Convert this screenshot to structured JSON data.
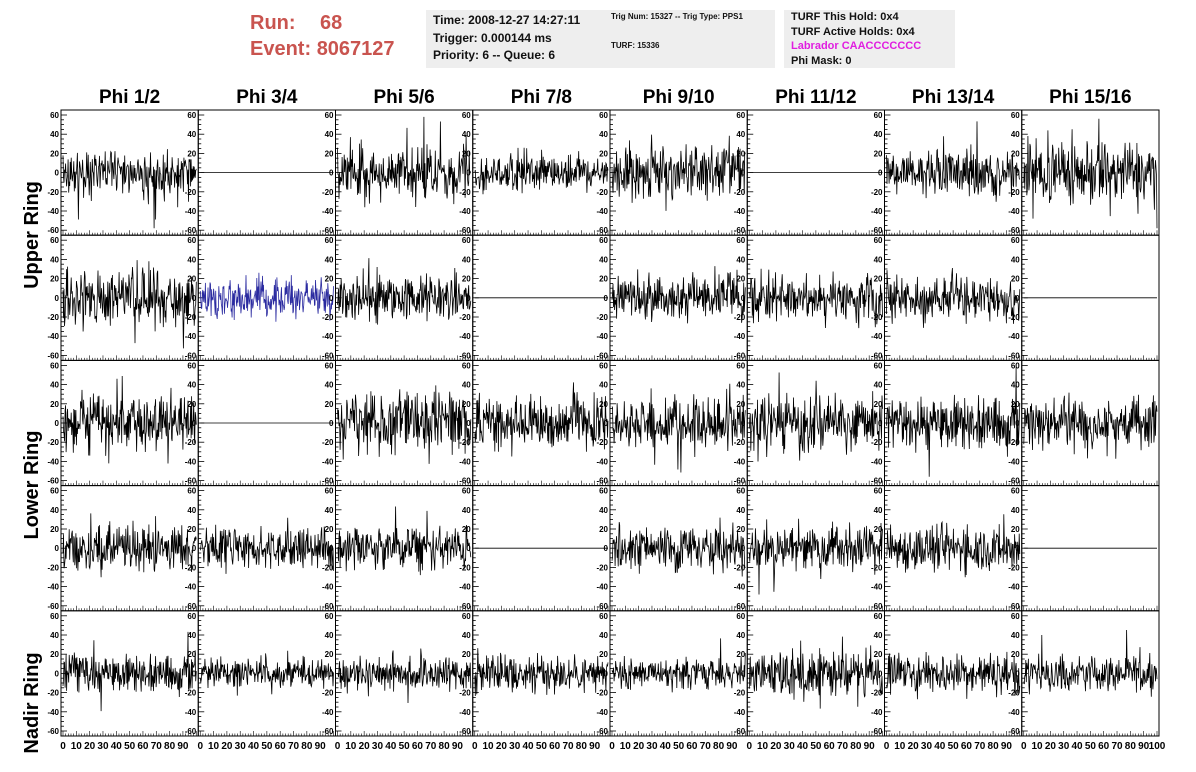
{
  "header": {
    "run_label": "Run:",
    "run_value": "68",
    "event_label": "Event:",
    "event_value": "8067127",
    "time_line": "Time: 2008-12-27 14:27:11",
    "trigger_line": "Trigger: 0.000144 ms",
    "priority_line": "Priority: 6 -- Queue: 6",
    "trig_line": "Trig Num: 15327 -- Trig Type: PPS1",
    "turf_line": "TURF: 15336",
    "turf_hold_line": "TURF This Hold: 0x4",
    "turf_active_line": "TURF Active Holds: 0x4",
    "labrador_line": "Labrador CAACCCCCCC",
    "phi_mask_line": "Phi Mask: 0"
  },
  "colors": {
    "header_red": "#c9544f",
    "labrador_magenta": "#e01ee0",
    "trace_default": "#000000",
    "trace_highlight": "#2a2aa0",
    "info_box_bg": "#eeeeee"
  },
  "chart_data": {
    "type": "line",
    "columns": [
      "Phi 1/2",
      "Phi 3/4",
      "Phi 5/6",
      "Phi 7/8",
      "Phi 9/10",
      "Phi 11/12",
      "Phi 13/14",
      "Phi 15/16"
    ],
    "rows": [
      "Upper Ring",
      "Lower Ring",
      "Nadir Ring"
    ],
    "row_label_order": [
      "Upper Ring",
      "Lower Ring",
      "Nadir Ring"
    ],
    "xlim": [
      0,
      100
    ],
    "ylim": [
      -60,
      60
    ],
    "x_tick_labels": [
      "0",
      "10",
      "20",
      "30",
      "40",
      "50",
      "60",
      "70",
      "80",
      "90",
      "100"
    ],
    "y_tick_labels": [
      "60",
      "40",
      "20",
      "0",
      "-20",
      "-40",
      "-60"
    ],
    "n_samples": 260,
    "panels": [
      {
        "row": 0,
        "col": 0,
        "state": "active",
        "amplitude": 18,
        "seed": 11
      },
      {
        "row": 0,
        "col": 1,
        "state": "flat",
        "amplitude": 0,
        "seed": 12
      },
      {
        "row": 0,
        "col": 2,
        "state": "active",
        "amplitude": 20,
        "seed": 13
      },
      {
        "row": 0,
        "col": 3,
        "state": "active",
        "amplitude": 14,
        "seed": 14
      },
      {
        "row": 0,
        "col": 4,
        "state": "active",
        "amplitude": 20,
        "seed": 15
      },
      {
        "row": 0,
        "col": 5,
        "state": "flat",
        "amplitude": 0,
        "seed": 16
      },
      {
        "row": 0,
        "col": 6,
        "state": "active",
        "amplitude": 16,
        "seed": 17
      },
      {
        "row": 0,
        "col": 7,
        "state": "active",
        "amplitude": 24,
        "seed": 18
      },
      {
        "row": 1,
        "col": 0,
        "state": "active",
        "amplitude": 22,
        "seed": 21
      },
      {
        "row": 1,
        "col": 1,
        "state": "highlight",
        "amplitude": 14,
        "seed": 22
      },
      {
        "row": 1,
        "col": 2,
        "state": "active",
        "amplitude": 17,
        "seed": 23
      },
      {
        "row": 1,
        "col": 3,
        "state": "flat",
        "amplitude": 0,
        "seed": 24
      },
      {
        "row": 1,
        "col": 4,
        "state": "active",
        "amplitude": 16,
        "seed": 25
      },
      {
        "row": 1,
        "col": 5,
        "state": "active",
        "amplitude": 18,
        "seed": 26
      },
      {
        "row": 1,
        "col": 6,
        "state": "active",
        "amplitude": 16,
        "seed": 27
      },
      {
        "row": 1,
        "col": 7,
        "state": "flat",
        "amplitude": 0,
        "seed": 28
      },
      {
        "row": 2,
        "col": 0,
        "state": "active",
        "amplitude": 20,
        "seed": 31
      },
      {
        "row": 2,
        "col": 1,
        "state": "flat",
        "amplitude": 0,
        "seed": 32
      },
      {
        "row": 2,
        "col": 2,
        "state": "active",
        "amplitude": 22,
        "seed": 33
      },
      {
        "row": 2,
        "col": 3,
        "state": "active",
        "amplitude": 18,
        "seed": 34
      },
      {
        "row": 2,
        "col": 4,
        "state": "active",
        "amplitude": 18,
        "seed": 35
      },
      {
        "row": 2,
        "col": 5,
        "state": "active",
        "amplitude": 20,
        "seed": 36
      },
      {
        "row": 2,
        "col": 6,
        "state": "active",
        "amplitude": 20,
        "seed": 37
      },
      {
        "row": 2,
        "col": 7,
        "state": "active",
        "amplitude": 18,
        "seed": 38
      },
      {
        "row": 3,
        "col": 0,
        "state": "active",
        "amplitude": 17,
        "seed": 41
      },
      {
        "row": 3,
        "col": 1,
        "state": "active",
        "amplitude": 15,
        "seed": 42
      },
      {
        "row": 3,
        "col": 2,
        "state": "active",
        "amplitude": 16,
        "seed": 43
      },
      {
        "row": 3,
        "col": 3,
        "state": "flat",
        "amplitude": 0,
        "seed": 44
      },
      {
        "row": 3,
        "col": 4,
        "state": "active",
        "amplitude": 17,
        "seed": 45
      },
      {
        "row": 3,
        "col": 5,
        "state": "active",
        "amplitude": 16,
        "seed": 46
      },
      {
        "row": 3,
        "col": 6,
        "state": "active",
        "amplitude": 17,
        "seed": 47
      },
      {
        "row": 3,
        "col": 7,
        "state": "flat",
        "amplitude": 0,
        "seed": 48
      },
      {
        "row": 4,
        "col": 0,
        "state": "active",
        "amplitude": 14,
        "seed": 51
      },
      {
        "row": 4,
        "col": 1,
        "state": "active",
        "amplitude": 11,
        "seed": 52
      },
      {
        "row": 4,
        "col": 2,
        "state": "active",
        "amplitude": 13,
        "seed": 53
      },
      {
        "row": 4,
        "col": 3,
        "state": "active",
        "amplitude": 14,
        "seed": 54
      },
      {
        "row": 4,
        "col": 4,
        "state": "active",
        "amplitude": 11,
        "seed": 55
      },
      {
        "row": 4,
        "col": 5,
        "state": "active",
        "amplitude": 17,
        "seed": 56
      },
      {
        "row": 4,
        "col": 6,
        "state": "active",
        "amplitude": 15,
        "seed": 57
      },
      {
        "row": 4,
        "col": 7,
        "state": "active",
        "amplitude": 13,
        "seed": 58
      }
    ]
  }
}
